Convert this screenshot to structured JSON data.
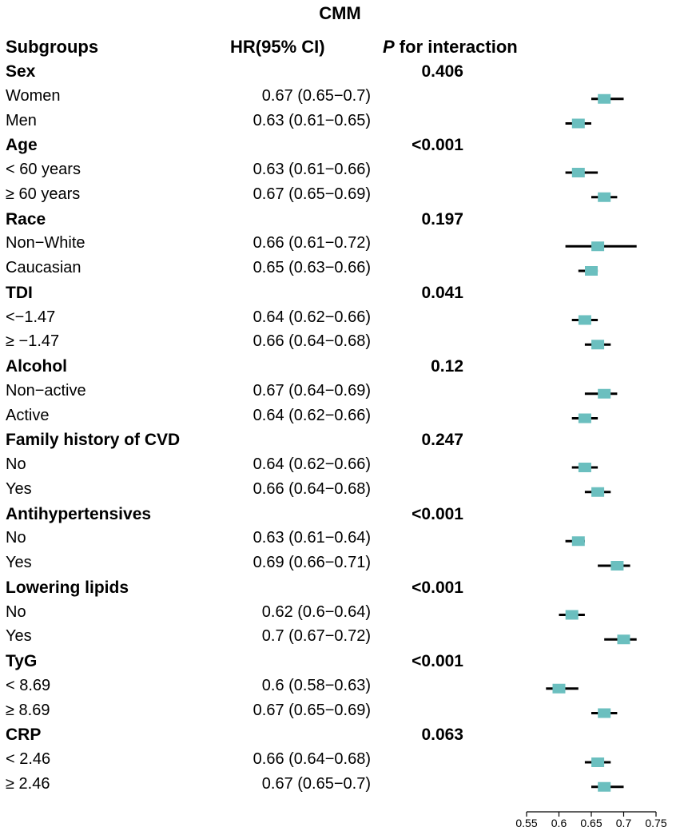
{
  "chart_data": {
    "type": "forest",
    "title": "CMM",
    "headers": {
      "subgroups": "Subgroups",
      "hr": "HR(95% CI)",
      "p_italic": "P",
      "p_rest": " for interaction"
    },
    "xlim": [
      0.55,
      0.75
    ],
    "ticks": [
      "0.55",
      "0.6",
      "0.65",
      "0.7",
      "0.75"
    ],
    "tick_values": [
      0.55,
      0.6,
      0.65,
      0.7,
      0.75
    ],
    "groups": [
      {
        "name": "Sex",
        "p": "0.406",
        "rows": [
          {
            "label": "Women",
            "hr_text": "0.67 (0.65−0.7)",
            "hr": 0.67,
            "lo": 0.65,
            "hi": 0.7
          },
          {
            "label": "Men",
            "hr_text": "0.63 (0.61−0.65)",
            "hr": 0.63,
            "lo": 0.61,
            "hi": 0.65
          }
        ]
      },
      {
        "name": "Age",
        "p": "<0.001",
        "rows": [
          {
            "label": "< 60 years",
            "hr_text": "0.63 (0.61−0.66)",
            "hr": 0.63,
            "lo": 0.61,
            "hi": 0.66
          },
          {
            "label": "≥ 60 years",
            "hr_text": "0.67 (0.65−0.69)",
            "hr": 0.67,
            "lo": 0.65,
            "hi": 0.69
          }
        ]
      },
      {
        "name": "Race",
        "p": "0.197",
        "rows": [
          {
            "label": "Non−White",
            "hr_text": "0.66 (0.61−0.72)",
            "hr": 0.66,
            "lo": 0.61,
            "hi": 0.72
          },
          {
            "label": "Caucasian",
            "hr_text": "0.65 (0.63−0.66)",
            "hr": 0.65,
            "lo": 0.63,
            "hi": 0.66
          }
        ]
      },
      {
        "name": "TDI",
        "p": "0.041",
        "rows": [
          {
            "label": "<−1.47",
            "hr_text": "0.64 (0.62−0.66)",
            "hr": 0.64,
            "lo": 0.62,
            "hi": 0.66
          },
          {
            "label": "≥ −1.47",
            "hr_text": "0.66 (0.64−0.68)",
            "hr": 0.66,
            "lo": 0.64,
            "hi": 0.68
          }
        ]
      },
      {
        "name": "Alcohol",
        "p": "0.12",
        "rows": [
          {
            "label": "Non−active",
            "hr_text": "0.67 (0.64−0.69)",
            "hr": 0.67,
            "lo": 0.64,
            "hi": 0.69
          },
          {
            "label": "Active",
            "hr_text": "0.64 (0.62−0.66)",
            "hr": 0.64,
            "lo": 0.62,
            "hi": 0.66
          }
        ]
      },
      {
        "name": "Family history of CVD",
        "p": "0.247",
        "rows": [
          {
            "label": "No",
            "hr_text": "0.64 (0.62−0.66)",
            "hr": 0.64,
            "lo": 0.62,
            "hi": 0.66
          },
          {
            "label": "Yes",
            "hr_text": "0.66 (0.64−0.68)",
            "hr": 0.66,
            "lo": 0.64,
            "hi": 0.68
          }
        ]
      },
      {
        "name": "Antihypertensives",
        "p": "<0.001",
        "rows": [
          {
            "label": "No",
            "hr_text": "0.63 (0.61−0.64)",
            "hr": 0.63,
            "lo": 0.61,
            "hi": 0.64
          },
          {
            "label": "Yes",
            "hr_text": "0.69 (0.66−0.71)",
            "hr": 0.69,
            "lo": 0.66,
            "hi": 0.71
          }
        ]
      },
      {
        "name": "Lowering lipids",
        "p": "<0.001",
        "rows": [
          {
            "label": "No",
            "hr_text": "0.62 (0.6−0.64)",
            "hr": 0.62,
            "lo": 0.6,
            "hi": 0.64
          },
          {
            "label": "Yes",
            "hr_text": "0.7 (0.67−0.72)",
            "hr": 0.7,
            "lo": 0.67,
            "hi": 0.72
          }
        ]
      },
      {
        "name": "TyG",
        "p": "<0.001",
        "rows": [
          {
            "label": "< 8.69",
            "hr_text": "0.6 (0.58−0.63)",
            "hr": 0.6,
            "lo": 0.58,
            "hi": 0.63
          },
          {
            "label": "≥ 8.69",
            "hr_text": "0.67 (0.65−0.69)",
            "hr": 0.67,
            "lo": 0.65,
            "hi": 0.69
          }
        ]
      },
      {
        "name": "CRP",
        "p": "0.063",
        "rows": [
          {
            "label": "< 2.46",
            "hr_text": "0.66 (0.64−0.68)",
            "hr": 0.66,
            "lo": 0.64,
            "hi": 0.68
          },
          {
            "label": "≥ 2.46",
            "hr_text": "0.67 (0.65−0.7)",
            "hr": 0.67,
            "lo": 0.65,
            "hi": 0.7
          }
        ]
      }
    ],
    "colors": {
      "box": "#6bbfbf",
      "line": "#000000"
    }
  }
}
